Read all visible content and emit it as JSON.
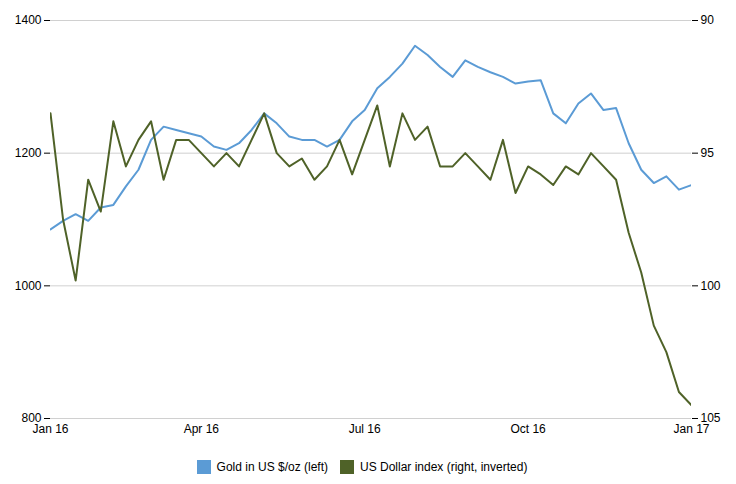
{
  "chart_data": {
    "type": "line",
    "x": [
      0,
      1,
      2,
      3,
      4,
      5,
      6,
      7,
      8,
      9,
      10,
      11,
      12,
      13,
      14,
      15,
      16,
      17,
      18,
      19,
      20,
      21,
      22,
      23,
      24,
      25,
      26,
      27,
      28,
      29,
      30,
      31,
      32,
      33,
      34,
      35,
      36,
      37,
      38,
      39,
      40,
      41,
      42,
      43,
      44,
      45,
      46,
      47,
      48,
      49,
      50,
      51
    ],
    "xlim": [
      0,
      51
    ],
    "xticks": [
      {
        "value": 0,
        "label": "Jan 16"
      },
      {
        "value": 12,
        "label": "Apr 16"
      },
      {
        "value": 25,
        "label": "Jul 16"
      },
      {
        "value": 38,
        "label": "Oct 16"
      },
      {
        "value": 51,
        "label": "Jan 17"
      }
    ],
    "ylim": [
      800,
      1400
    ],
    "yticks": [
      800,
      1000,
      1200,
      1400
    ],
    "y2lim": [
      105,
      90
    ],
    "y2ticks": [
      90,
      95,
      100,
      105
    ],
    "grid": true,
    "legend": "bottom",
    "series": [
      {
        "name": "Gold in US $/oz (left)",
        "color": "#5B9BD5",
        "values": [
          1085,
          1098,
          1108,
          1098,
          1118,
          1122,
          1150,
          1175,
          1220,
          1240,
          1235,
          1230,
          1225,
          1210,
          1205,
          1215,
          1235,
          1260,
          1245,
          1225,
          1220,
          1220,
          1210,
          1220,
          1248,
          1265,
          1298,
          1315,
          1335,
          1362,
          1348,
          1330,
          1315,
          1340,
          1330,
          1322,
          1315,
          1305,
          1308,
          1310,
          1260,
          1245,
          1275,
          1290,
          1265,
          1268,
          1215,
          1175,
          1155,
          1165,
          1145,
          1152
        ]
      },
      {
        "name": "US Dollar index (right, inverted)",
        "color": "#4F6228",
        "axis": "y2",
        "values": [
          93.5,
          97.5,
          99.8,
          96.0,
          97.2,
          93.8,
          95.5,
          94.5,
          93.8,
          96.0,
          94.5,
          94.5,
          95.0,
          95.5,
          95.0,
          95.5,
          94.5,
          93.5,
          95.0,
          95.5,
          95.2,
          96.0,
          95.5,
          94.5,
          95.8,
          94.5,
          93.2,
          95.5,
          93.5,
          94.5,
          94.0,
          95.5,
          95.5,
          95.0,
          95.5,
          96.0,
          94.5,
          96.5,
          95.5,
          95.8,
          96.2,
          95.5,
          95.8,
          95.0,
          95.5,
          96.0,
          98.0,
          99.5,
          101.5,
          102.5,
          104.0,
          104.5
        ]
      }
    ]
  }
}
